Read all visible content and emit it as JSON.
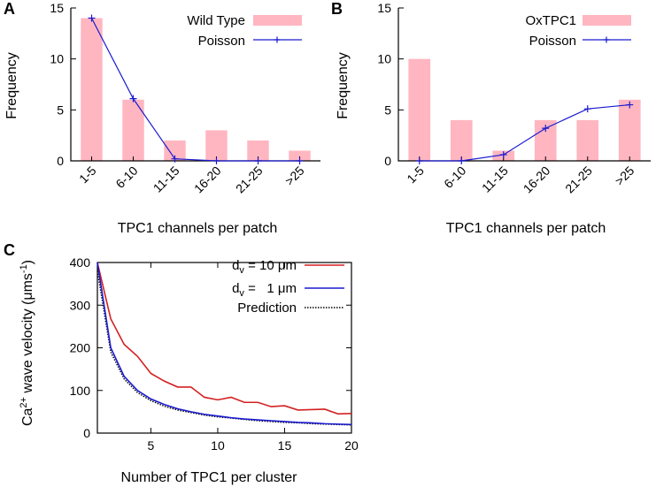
{
  "chart_data": [
    {
      "panel": "A",
      "type": "bar",
      "xlabel": "TPC1 channels per patch",
      "ylabel": "Frequency",
      "categories": [
        "1-5",
        "6-10",
        "11-15",
        "16-20",
        "21-25",
        ">25"
      ],
      "ylim": [
        0,
        15
      ],
      "yticks": [
        0,
        5,
        10,
        15
      ],
      "series": [
        {
          "name": "Wild Type",
          "type": "bar",
          "color": "#ffb6c1",
          "values": [
            14,
            6,
            2,
            3,
            2,
            1
          ]
        },
        {
          "name": "Poisson",
          "type": "line",
          "color": "#1a1ad0",
          "values": [
            14,
            6.1,
            0.2,
            0,
            0,
            0
          ]
        }
      ],
      "legend": "top-right"
    },
    {
      "panel": "B",
      "type": "bar",
      "xlabel": "TPC1 channels per patch",
      "ylabel": "Frequency",
      "categories": [
        "1-5",
        "6-10",
        "11-15",
        "16-20",
        "21-25",
        ">25"
      ],
      "ylim": [
        0,
        15
      ],
      "yticks": [
        0,
        5,
        10,
        15
      ],
      "series": [
        {
          "name": "OxTPC1",
          "type": "bar",
          "color": "#ffb6c1",
          "values": [
            10,
            4,
            1,
            4,
            4,
            6
          ]
        },
        {
          "name": "Poisson",
          "type": "line",
          "color": "#1a1ad0",
          "values": [
            0,
            0,
            0.6,
            3.2,
            5.1,
            5.5
          ]
        }
      ],
      "legend": "top-right"
    },
    {
      "panel": "C",
      "type": "line",
      "xlabel": "Number of TPC1 per cluster",
      "ylabel_main": "Ca",
      "ylabel_sup1": "2+",
      "ylabel_mid": " wave velocity (",
      "ylabel_unit": "μms",
      "ylabel_sup2": "-1",
      "ylabel_end": ")",
      "xlim": [
        1,
        20
      ],
      "ylim": [
        0,
        400
      ],
      "xticks": [
        5,
        10,
        15,
        20
      ],
      "yticks": [
        0,
        100,
        200,
        300,
        400
      ],
      "x": [
        1,
        2,
        3,
        4,
        5,
        6,
        7,
        8,
        9,
        10,
        11,
        12,
        13,
        14,
        15,
        16,
        17,
        18,
        19,
        20
      ],
      "series": [
        {
          "name_main": "d",
          "name_sub": "v",
          "name_rest": " = 10 μm",
          "color": "#d42020",
          "style": "solid",
          "values": [
            400,
            268,
            208,
            180,
            140,
            122,
            108,
            108,
            84,
            78,
            84,
            72,
            72,
            62,
            64,
            54,
            55,
            56,
            45,
            46
          ]
        },
        {
          "name_main": "d",
          "name_sub": "v",
          "name_rest": " =   1 μm",
          "color": "#1a1ad0",
          "style": "solid",
          "values": [
            400,
            200,
            133,
            100,
            80,
            67,
            57,
            50,
            44,
            40,
            36,
            33,
            31,
            29,
            27,
            25,
            24,
            22,
            21,
            20
          ]
        },
        {
          "name_main": "Prediction",
          "name_sub": "",
          "name_rest": "",
          "color": "#000000",
          "style": "dotted",
          "values": [
            380,
            190,
            127,
            95,
            76,
            63,
            54,
            48,
            42,
            38,
            35,
            32,
            29,
            27,
            25,
            24,
            22,
            21,
            20,
            19
          ]
        }
      ],
      "legend": "top-right"
    }
  ]
}
